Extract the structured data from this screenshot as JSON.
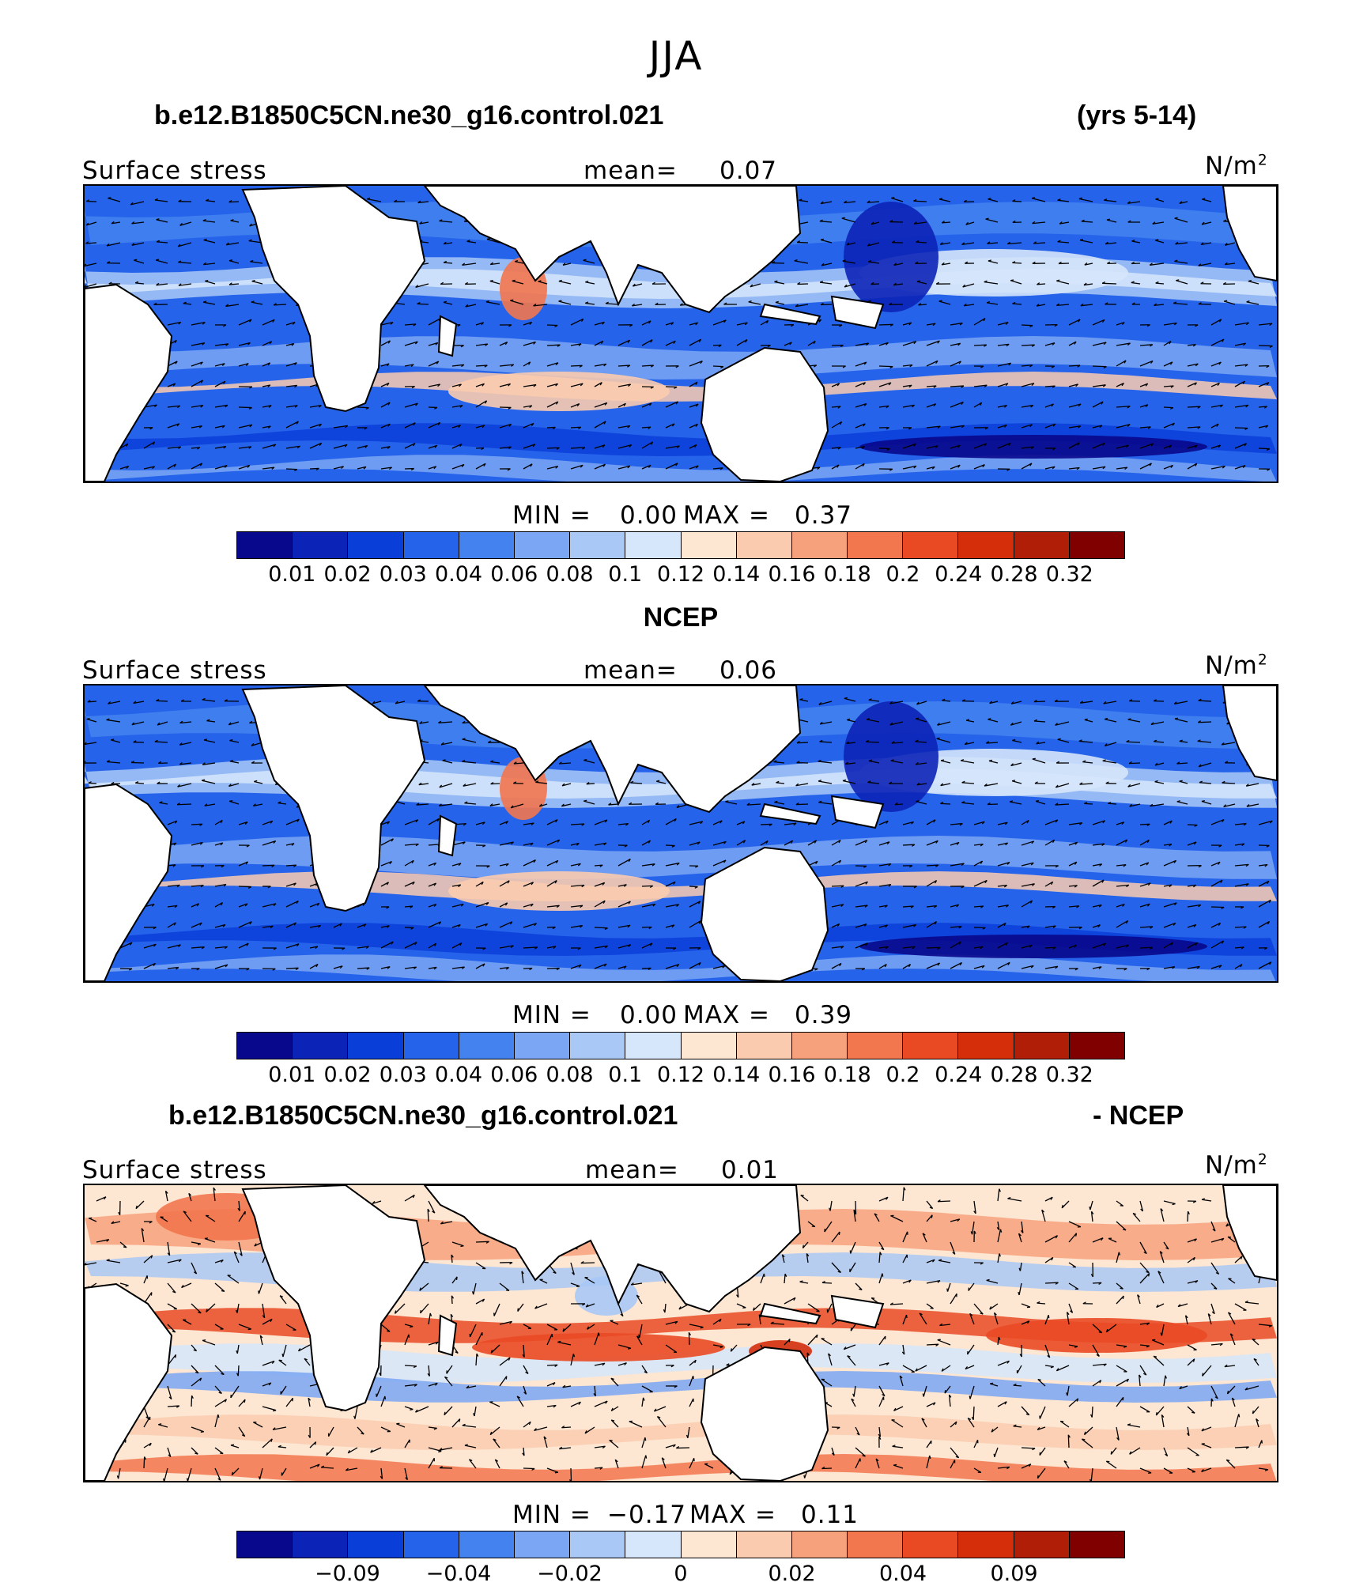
{
  "season": "JJA",
  "colors": {
    "model_obs_scale": [
      "#08088c",
      "#0c23b7",
      "#0a3ed8",
      "#2563eb",
      "#4483ef",
      "#7ba6f3",
      "#a9c8f6",
      "#d6e6fb",
      "#fde6d2",
      "#fbcbaf",
      "#f7a17c",
      "#f2764e",
      "#e94a24",
      "#d42e0b",
      "#b01e08",
      "#800000"
    ],
    "diff_scale": [
      "#08088c",
      "#0c23b7",
      "#0a3ed8",
      "#2563eb",
      "#4483ef",
      "#7ba6f3",
      "#a9c8f6",
      "#d6e6fb",
      "#fde6d2",
      "#fbcbaf",
      "#f7a17c",
      "#f2764e",
      "#e94a24",
      "#d42e0b",
      "#b01e08",
      "#800000"
    ],
    "land": "#ffffff"
  },
  "panels": [
    {
      "title_left": "b.e12.B1850C5CN.ne30_g16.control.021",
      "title_right": "(yrs 5-14)",
      "variable": "Surface stress",
      "mean_label": "mean=",
      "mean_value": "0.07",
      "units": "N/m",
      "units_sup": "2",
      "min_label": "MIN =",
      "min_value": "0.00",
      "max_label": "MAX =",
      "max_value": "0.37",
      "ticks": [
        "0.01",
        "0.02",
        "0.03",
        "0.04",
        "0.06",
        "0.08",
        "0.1",
        "0.12",
        "0.14",
        "0.16",
        "0.18",
        "0.2",
        "0.24",
        "0.28",
        "0.32"
      ],
      "kind": "full"
    },
    {
      "title_center": "NCEP",
      "variable": "Surface stress",
      "mean_label": "mean=",
      "mean_value": "0.06",
      "units": "N/m",
      "units_sup": "2",
      "min_label": "MIN =",
      "min_value": "0.00",
      "max_label": "MAX =",
      "max_value": "0.39",
      "ticks": [
        "0.01",
        "0.02",
        "0.03",
        "0.04",
        "0.06",
        "0.08",
        "0.1",
        "0.12",
        "0.14",
        "0.16",
        "0.18",
        "0.2",
        "0.24",
        "0.28",
        "0.32"
      ],
      "kind": "full"
    },
    {
      "title_left": "b.e12.B1850C5CN.ne30_g16.control.021",
      "title_right": "- NCEP",
      "variable": "Surface stress",
      "mean_label": "mean=",
      "mean_value": "0.01",
      "units": "N/m",
      "units_sup": "2",
      "min_label": "MIN =",
      "min_value": "−0.17",
      "max_label": "MAX =",
      "max_value": "0.11",
      "ticks": [
        "−0.09",
        "−0.04",
        "−0.02",
        "0",
        "0.02",
        "0.04",
        "0.09"
      ],
      "kind": "diff"
    }
  ]
}
